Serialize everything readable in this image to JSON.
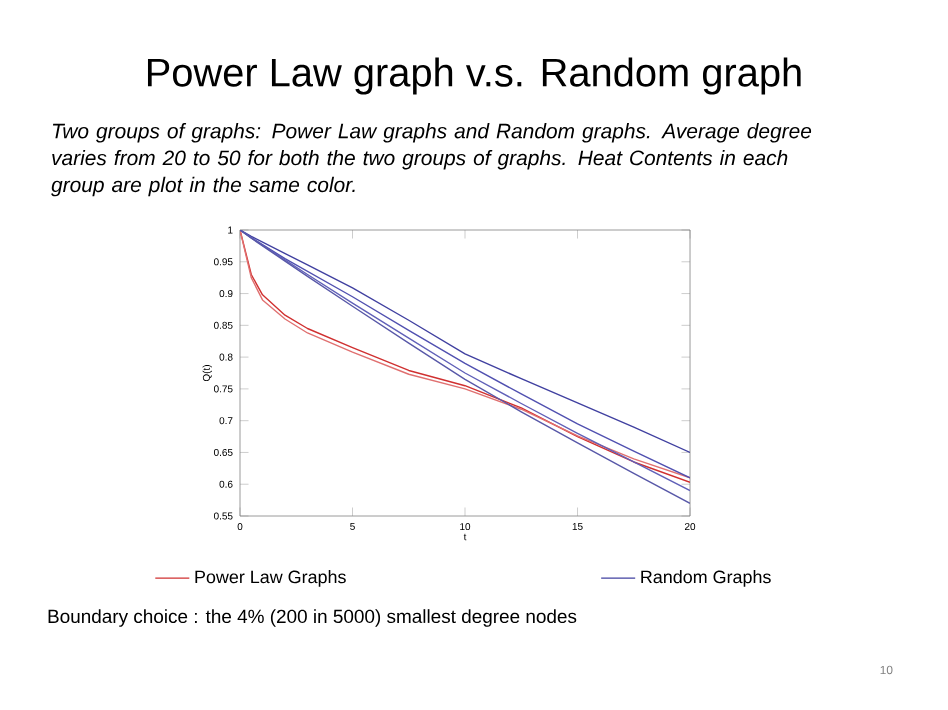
{
  "chart_data": {
    "type": "line",
    "title": "Power Law graph v.s. Random graph",
    "subtitle": "Two groups of graphs: Power Law graphs and Random graphs. Average degree varies from 20 to 50 for both the two groups of graphs. Heat Contents in each group are plot in the same color.",
    "xlabel": "t",
    "ylabel": "Q(t)",
    "x": [
      0,
      0.5,
      1,
      2,
      3,
      5,
      7.5,
      10,
      12.5,
      15,
      17.5,
      20
    ],
    "series": [
      {
        "name": "Power Law Graphs",
        "color": "#d03030",
        "values": [
          1,
          0.93,
          0.898,
          0.866,
          0.845,
          0.815,
          0.779,
          0.755,
          0.72,
          0.675,
          0.635,
          0.603
        ]
      },
      {
        "color": "#e07070",
        "values": [
          1,
          0.925,
          0.89,
          0.86,
          0.838,
          0.808,
          0.773,
          0.75,
          0.718,
          0.676,
          0.64,
          0.61
        ]
      },
      {
        "name": "Random Graphs",
        "color": "#4040a0",
        "values": [
          1,
          0.99,
          0.981,
          0.963,
          0.945,
          0.909,
          0.858,
          0.805,
          0.766,
          0.728,
          0.69,
          0.65
        ]
      },
      {
        "color": "#5050b0",
        "values": [
          1,
          0.988,
          0.977,
          0.955,
          0.935,
          0.895,
          0.842,
          0.79,
          0.742,
          0.695,
          0.652,
          0.61
        ]
      },
      {
        "color": "#6060b8",
        "values": [
          1,
          0.988,
          0.976,
          0.953,
          0.93,
          0.885,
          0.83,
          0.775,
          0.727,
          0.68,
          0.635,
          0.59
        ]
      },
      {
        "color": "#5858a8",
        "values": [
          1,
          0.987,
          0.975,
          0.951,
          0.927,
          0.88,
          0.822,
          0.765,
          0.714,
          0.665,
          0.617,
          0.57
        ]
      }
    ],
    "xlim": [
      0,
      20
    ],
    "ylim": [
      0.55,
      1
    ],
    "xticks": [
      0,
      5,
      10,
      15,
      20
    ],
    "yticks": [
      0.55,
      0.6,
      0.65,
      0.7,
      0.75,
      0.8,
      0.85,
      0.9,
      0.95,
      1
    ],
    "grid": false,
    "legend": "bottom",
    "marker": "none",
    "line_style": "solid",
    "annotations": [
      "Boundary choice : the 4% (200 in 5000) smallest degree nodes",
      "10"
    ]
  }
}
